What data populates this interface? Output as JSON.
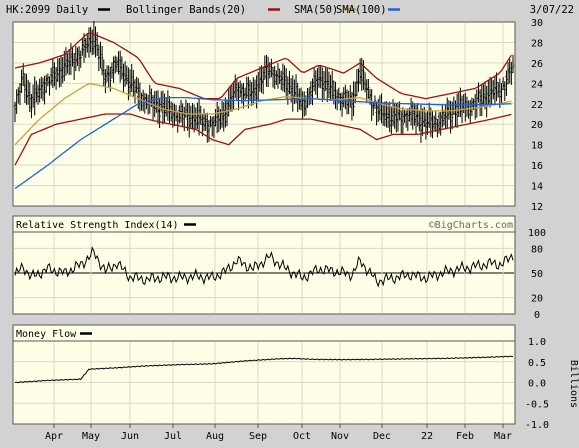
{
  "header": {
    "symbol_label": "HK:2099 Daily",
    "date": "3/07/22",
    "legend": [
      {
        "label": "Bollinger Bands(20)",
        "color": "#a01010"
      },
      {
        "label": "SMA(50)",
        "color": "#c8a040"
      },
      {
        "label": "SMA(100)",
        "color": "#2060e0"
      }
    ]
  },
  "watermark": "©BigCharts.com",
  "chart_data": [
    {
      "type": "ohlc",
      "panel": "price",
      "ylim": [
        12,
        30
      ],
      "yticks": [
        12,
        14,
        16,
        18,
        20,
        22,
        24,
        26,
        28,
        30
      ],
      "x_months": [
        "Apr",
        "May",
        "Jun",
        "Jul",
        "Aug",
        "Sep",
        "Oct",
        "Nov",
        "Dec",
        "22",
        "Feb",
        "Mar"
      ],
      "price_path": [
        [
          0,
          21.5
        ],
        [
          5,
          24.5
        ],
        [
          10,
          22
        ],
        [
          18,
          24
        ],
        [
          30,
          25.5
        ],
        [
          40,
          27
        ],
        [
          48,
          28.5
        ],
        [
          55,
          24.5
        ],
        [
          62,
          26
        ],
        [
          70,
          24
        ],
        [
          78,
          22.5
        ],
        [
          90,
          21.5
        ],
        [
          100,
          21
        ],
        [
          110,
          20.5
        ],
        [
          120,
          20
        ],
        [
          128,
          21
        ],
        [
          135,
          23.5
        ],
        [
          145,
          23
        ],
        [
          155,
          25.5
        ],
        [
          165,
          24
        ],
        [
          175,
          22
        ],
        [
          185,
          24.5
        ],
        [
          195,
          23
        ],
        [
          205,
          22
        ],
        [
          210,
          25
        ],
        [
          220,
          21.5
        ],
        [
          230,
          20.5
        ],
        [
          240,
          21
        ],
        [
          250,
          20
        ],
        [
          260,
          20.5
        ],
        [
          270,
          21.5
        ],
        [
          280,
          22
        ],
        [
          290,
          23
        ],
        [
          296,
          23.5
        ],
        [
          303,
          25.5
        ]
      ],
      "series": [
        {
          "name": "Bollinger Bands(20) upper",
          "path": [
            [
              0,
              25.5
            ],
            [
              15,
              26
            ],
            [
              30,
              26.8
            ],
            [
              45,
              29
            ],
            [
              60,
              28
            ],
            [
              75,
              26.5
            ],
            [
              85,
              24
            ],
            [
              100,
              23.5
            ],
            [
              115,
              22.5
            ],
            [
              125,
              22.5
            ],
            [
              135,
              24.5
            ],
            [
              150,
              25.5
            ],
            [
              165,
              26.5
            ],
            [
              175,
              25
            ],
            [
              185,
              25.8
            ],
            [
              200,
              25
            ],
            [
              210,
              26
            ],
            [
              220,
              24.5
            ],
            [
              235,
              23
            ],
            [
              250,
              22.5
            ],
            [
              265,
              23
            ],
            [
              280,
              23.5
            ],
            [
              295,
              25
            ],
            [
              303,
              27
            ]
          ]
        },
        {
          "name": "Bollinger Bands(20) lower",
          "path": [
            [
              0,
              16
            ],
            [
              10,
              19
            ],
            [
              25,
              20
            ],
            [
              40,
              20.5
            ],
            [
              55,
              21
            ],
            [
              70,
              21
            ],
            [
              80,
              20.5
            ],
            [
              95,
              20
            ],
            [
              110,
              19.5
            ],
            [
              120,
              18.5
            ],
            [
              130,
              18
            ],
            [
              140,
              19.5
            ],
            [
              155,
              20
            ],
            [
              165,
              20.5
            ],
            [
              180,
              20.5
            ],
            [
              195,
              20
            ],
            [
              210,
              19.5
            ],
            [
              220,
              18.5
            ],
            [
              230,
              19
            ],
            [
              245,
              19
            ],
            [
              260,
              19.5
            ],
            [
              275,
              20
            ],
            [
              290,
              20.5
            ],
            [
              303,
              21
            ]
          ]
        },
        {
          "name": "SMA(50)",
          "path": [
            [
              0,
              18
            ],
            [
              15,
              20.5
            ],
            [
              30,
              22.5
            ],
            [
              45,
              24
            ],
            [
              60,
              23.5
            ],
            [
              75,
              22.5
            ],
            [
              90,
              21.5
            ],
            [
              105,
              21
            ],
            [
              120,
              21
            ],
            [
              135,
              21.5
            ],
            [
              150,
              22.3
            ],
            [
              165,
              22.7
            ],
            [
              180,
              22.5
            ],
            [
              195,
              22.4
            ],
            [
              210,
              22.6
            ],
            [
              222,
              22
            ],
            [
              235,
              21.5
            ],
            [
              250,
              21.3
            ],
            [
              265,
              21.3
            ],
            [
              280,
              21.6
            ],
            [
              295,
              22
            ],
            [
              303,
              22.3
            ]
          ]
        },
        {
          "name": "SMA(100)",
          "path": [
            [
              0,
              13.7
            ],
            [
              20,
              16
            ],
            [
              40,
              18.5
            ],
            [
              60,
              20.5
            ],
            [
              75,
              22
            ],
            [
              90,
              22.6
            ],
            [
              105,
              22.6
            ],
            [
              120,
              22.4
            ],
            [
              140,
              22.3
            ],
            [
              160,
              22.4
            ],
            [
              180,
              22.5
            ],
            [
              200,
              22.3
            ],
            [
              220,
              22.1
            ],
            [
              240,
              22
            ],
            [
              260,
              21.9
            ],
            [
              280,
              21.9
            ],
            [
              303,
              22
            ]
          ]
        }
      ]
    },
    {
      "type": "line",
      "panel": "rsi",
      "title": "Relative Strength Index(14)",
      "ylim": [
        0,
        100
      ],
      "yticks": [
        0,
        20,
        50,
        80,
        100
      ],
      "reference": 50,
      "path": [
        [
          0,
          47
        ],
        [
          5,
          58
        ],
        [
          10,
          45
        ],
        [
          20,
          55
        ],
        [
          30,
          50
        ],
        [
          40,
          60
        ],
        [
          48,
          75
        ],
        [
          55,
          52
        ],
        [
          62,
          62
        ],
        [
          70,
          45
        ],
        [
          80,
          42
        ],
        [
          90,
          45
        ],
        [
          100,
          44
        ],
        [
          110,
          46
        ],
        [
          120,
          44
        ],
        [
          128,
          52
        ],
        [
          135,
          65
        ],
        [
          145,
          55
        ],
        [
          155,
          70
        ],
        [
          165,
          55
        ],
        [
          175,
          44
        ],
        [
          185,
          55
        ],
        [
          195,
          52
        ],
        [
          205,
          48
        ],
        [
          210,
          65
        ],
        [
          220,
          40
        ],
        [
          230,
          44
        ],
        [
          240,
          48
        ],
        [
          250,
          44
        ],
        [
          260,
          50
        ],
        [
          270,
          55
        ],
        [
          280,
          58
        ],
        [
          290,
          62
        ],
        [
          296,
          60
        ],
        [
          303,
          72
        ]
      ]
    },
    {
      "type": "line",
      "panel": "money-flow",
      "title": "Money Flow",
      "ylabel": "Billions",
      "ylim": [
        -1.0,
        1.0
      ],
      "yticks": [
        -1.0,
        -0.5,
        0.0,
        0.5,
        1.0
      ],
      "path": [
        [
          0,
          0.0
        ],
        [
          20,
          0.05
        ],
        [
          40,
          0.08
        ],
        [
          45,
          0.32
        ],
        [
          60,
          0.35
        ],
        [
          80,
          0.4
        ],
        [
          100,
          0.43
        ],
        [
          120,
          0.45
        ],
        [
          140,
          0.52
        ],
        [
          160,
          0.57
        ],
        [
          170,
          0.58
        ],
        [
          180,
          0.56
        ],
        [
          200,
          0.55
        ],
        [
          220,
          0.56
        ],
        [
          240,
          0.57
        ],
        [
          260,
          0.58
        ],
        [
          280,
          0.6
        ],
        [
          303,
          0.63
        ]
      ]
    }
  ]
}
